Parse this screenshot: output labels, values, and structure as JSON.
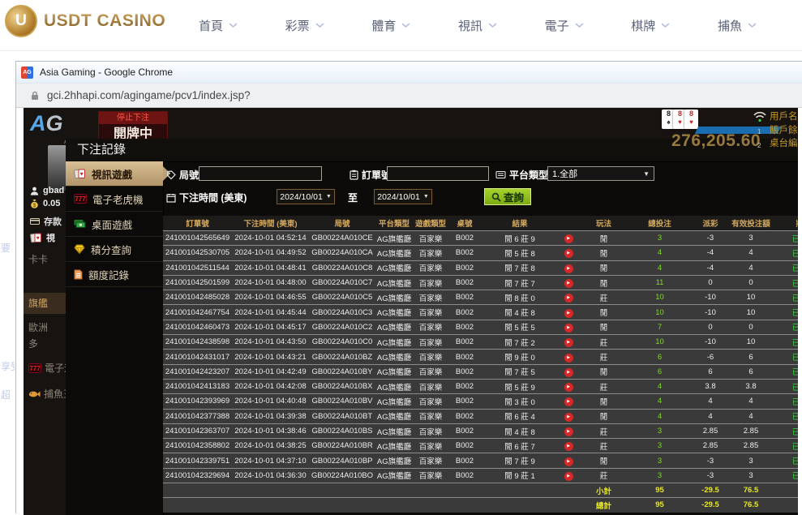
{
  "topnav": {
    "brand": "USDT CASINO",
    "coin_letter": "U",
    "items": [
      "首頁",
      "彩票",
      "體育",
      "視訊",
      "電子",
      "棋牌",
      "捕魚"
    ]
  },
  "window": {
    "favicon": "AG",
    "title": "Asia Gaming - Google Chrome",
    "url": "gci.2hhapi.com/agingame/pcv1/index.jsp?"
  },
  "background": {
    "ag_logo_a": "A",
    "ag_logo_g": "G",
    "ag_logo_sub": "ASIA GAMING",
    "stop_betting": "停止下注",
    "dealing": "開牌中",
    "username": "gbad",
    "balance": "0.05",
    "deposit": "存款",
    "video_tab": "視",
    "lobby_items": [
      "卡卡",
      "旗艦",
      "歐洲",
      "多",
      "電子遊",
      "捕魚王"
    ],
    "lobby_active": "旗艦",
    "cards": [
      {
        "rank": "8",
        "suit": "♠",
        "color": "#222222"
      },
      {
        "rank": "8",
        "suit": "♥",
        "color": "#d22222"
      },
      {
        "rank": "8",
        "suit": "♥",
        "color": "#d22222"
      }
    ],
    "big_number": "276,205.60",
    "info_lines": [
      "用戶名",
      "賬戶餘",
      "桌台編"
    ],
    "list_markers": [
      "1",
      "2"
    ],
    "side_chars": [
      "要",
      "享受",
      "超"
    ]
  },
  "modal": {
    "title": "下注記錄",
    "menu": [
      {
        "label": "視訊遊戲",
        "icon": "cards-icon",
        "active": true
      },
      {
        "label": "電子老虎機",
        "icon": "slot-777-icon",
        "active": false
      },
      {
        "label": "桌面遊戲",
        "icon": "money-icon",
        "active": false
      },
      {
        "label": "積分查詢",
        "icon": "diamond-icon",
        "active": false
      },
      {
        "label": "額度記錄",
        "icon": "document-icon",
        "active": false
      }
    ],
    "filters": {
      "round_label": "局號",
      "round_value": "",
      "order_label": "訂單號",
      "order_value": "",
      "platform_label": "平台類型",
      "platform_value": "1.全部",
      "time_label": "下注時間 (美東)",
      "date_from": "2024/10/01",
      "date_to": "2024/10/01",
      "to_label": "至",
      "search_label": "查詢"
    },
    "table": {
      "headers": [
        "訂單號",
        "下注時間 (美東)",
        "局號",
        "平台類型",
        "遊戲類型",
        "桌號",
        "結果",
        "",
        "玩法",
        "總投注",
        "派彩",
        "有效投注額",
        "狀態"
      ],
      "rows": [
        [
          "241001042565649",
          "2024-10-01 04:52:14",
          "GB00224A010CE",
          "AG旗艦廳",
          "百家樂",
          "B002",
          "閒 6 莊 9",
          "閒",
          "3",
          "-3",
          "3",
          "已派彩"
        ],
        [
          "241001042530705",
          "2024-10-01 04:49:52",
          "GB00224A010CA",
          "AG旗艦廳",
          "百家樂",
          "B002",
          "閒 5 莊 8",
          "閒",
          "4",
          "-4",
          "4",
          "已派彩"
        ],
        [
          "241001042511544",
          "2024-10-01 04:48:41",
          "GB00224A010C8",
          "AG旗艦廳",
          "百家樂",
          "B002",
          "閒 7 莊 8",
          "閒",
          "4",
          "-4",
          "4",
          "已派彩"
        ],
        [
          "241001042501599",
          "2024-10-01 04:48:00",
          "GB00224A010C7",
          "AG旗艦廳",
          "百家樂",
          "B002",
          "閒 7 莊 7",
          "閒",
          "11",
          "0",
          "0",
          "已派彩"
        ],
        [
          "241001042485028",
          "2024-10-01 04:46:55",
          "GB00224A010C5",
          "AG旗艦廳",
          "百家樂",
          "B002",
          "閒 8 莊 0",
          "莊",
          "10",
          "-10",
          "10",
          "已派彩"
        ],
        [
          "241001042467754",
          "2024-10-01 04:45:44",
          "GB00224A010C3",
          "AG旗艦廳",
          "百家樂",
          "B002",
          "閒 4 莊 8",
          "閒",
          "10",
          "-10",
          "10",
          "已派彩"
        ],
        [
          "241001042460473",
          "2024-10-01 04:45:17",
          "GB00224A010C2",
          "AG旗艦廳",
          "百家樂",
          "B002",
          "閒 5 莊 5",
          "閒",
          "7",
          "0",
          "0",
          "已派彩"
        ],
        [
          "241001042438598",
          "2024-10-01 04:43:50",
          "GB00224A010C0",
          "AG旗艦廳",
          "百家樂",
          "B002",
          "閒 7 莊 2",
          "莊",
          "10",
          "-10",
          "10",
          "已派彩"
        ],
        [
          "241001042431017",
          "2024-10-01 04:43:21",
          "GB00224A010BZ",
          "AG旗艦廳",
          "百家樂",
          "B002",
          "閒 9 莊 0",
          "莊",
          "6",
          "-6",
          "6",
          "已派彩"
        ],
        [
          "241001042423207",
          "2024-10-01 04:42:49",
          "GB00224A010BY",
          "AG旗艦廳",
          "百家樂",
          "B002",
          "閒 7 莊 5",
          "閒",
          "6",
          "6",
          "6",
          "已派彩"
        ],
        [
          "241001042413183",
          "2024-10-01 04:42:08",
          "GB00224A010BX",
          "AG旗艦廳",
          "百家樂",
          "B002",
          "閒 5 莊 9",
          "莊",
          "4",
          "3.8",
          "3.8",
          "已派彩"
        ],
        [
          "241001042393969",
          "2024-10-01 04:40:48",
          "GB00224A010BV",
          "AG旗艦廳",
          "百家樂",
          "B002",
          "閒 3 莊 0",
          "閒",
          "4",
          "4",
          "4",
          "已派彩"
        ],
        [
          "241001042377388",
          "2024-10-01 04:39:38",
          "GB00224A010BT",
          "AG旗艦廳",
          "百家樂",
          "B002",
          "閒 6 莊 4",
          "閒",
          "4",
          "4",
          "4",
          "已派彩"
        ],
        [
          "241001042363707",
          "2024-10-01 04:38:46",
          "GB00224A010BS",
          "AG旗艦廳",
          "百家樂",
          "B002",
          "閒 4 莊 8",
          "莊",
          "3",
          "2.85",
          "2.85",
          "已派彩"
        ],
        [
          "241001042358802",
          "2024-10-01 04:38:25",
          "GB00224A010BR",
          "AG旗艦廳",
          "百家樂",
          "B002",
          "閒 6 莊 7",
          "莊",
          "3",
          "2.85",
          "2.85",
          "已派彩"
        ],
        [
          "241001042339751",
          "2024-10-01 04:37:10",
          "GB00224A010BP",
          "AG旗艦廳",
          "百家樂",
          "B002",
          "閒 7 莊 9",
          "閒",
          "3",
          "-3",
          "3",
          "已派彩"
        ],
        [
          "241001042329694",
          "2024-10-01 04:36:30",
          "GB00224A010BO",
          "AG旗艦廳",
          "百家樂",
          "B002",
          "閒 9 莊 1",
          "莊",
          "3",
          "-3",
          "3",
          "已派彩"
        ]
      ],
      "subtotal": {
        "label": "小計",
        "total_bet": "95",
        "payout": "-29.5",
        "valid_bet": "76.5"
      },
      "total": {
        "label": "總計",
        "total_bet": "95",
        "payout": "-29.5",
        "valid_bet": "76.5"
      }
    }
  },
  "colors": {
    "accent_button": "#8bc320",
    "positive": "#7fdc1e",
    "negative": "#e04343",
    "status_paid": "#38d83c",
    "header_gold": "#d2a85f",
    "footer_yellow": "#e9e91c"
  }
}
